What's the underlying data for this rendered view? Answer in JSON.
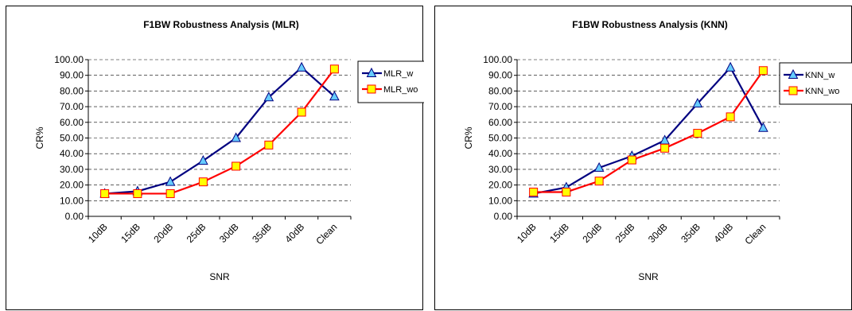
{
  "chart_data": [
    {
      "type": "line",
      "title": "F1BW Robustness Analysis (MLR)",
      "xlabel": "SNR",
      "ylabel": "CR%",
      "ylim": [
        0,
        100
      ],
      "yticks": [
        "0.00",
        "10.00",
        "20.00",
        "30.00",
        "40.00",
        "50.00",
        "60.00",
        "70.00",
        "80.00",
        "90.00",
        "100.00"
      ],
      "categories": [
        "10dB",
        "15dB",
        "20dB",
        "25dB",
        "30dB",
        "35dB",
        "40dB",
        "Clean"
      ],
      "grid": "horizontal dashed",
      "legend_position": "right",
      "series": [
        {
          "name": "MLR_w",
          "values": [
            14.5,
            16,
            22,
            35.5,
            50,
            76,
            95,
            76.5
          ],
          "color": "#000080",
          "marker": "triangle",
          "marker_fill": "#66ccff"
        },
        {
          "name": "MLR_wo",
          "values": [
            14.5,
            14.5,
            14.5,
            22,
            32,
            45.5,
            66.5,
            94
          ],
          "color": "#ff0000",
          "marker": "square",
          "marker_fill": "#ffff00"
        }
      ]
    },
    {
      "type": "line",
      "title": "F1BW Robustness Analysis (KNN)",
      "xlabel": "SNR",
      "ylabel": "CR%",
      "ylim": [
        0,
        100
      ],
      "yticks": [
        "0.00",
        "10.00",
        "20.00",
        "30.00",
        "40.00",
        "50.00",
        "60.00",
        "70.00",
        "80.00",
        "90.00",
        "100.00"
      ],
      "categories": [
        "10dB",
        "15dB",
        "20dB",
        "25dB",
        "30dB",
        "35dB",
        "40dB",
        "Clean"
      ],
      "grid": "horizontal dashed",
      "legend_position": "right",
      "series": [
        {
          "name": "KNN_w",
          "values": [
            14.5,
            18.5,
            31,
            38.5,
            48.5,
            72,
            95,
            56.5
          ],
          "color": "#000080",
          "marker": "triangle",
          "marker_fill": "#66ccff"
        },
        {
          "name": "KNN_wo",
          "values": [
            15.5,
            15.5,
            22.5,
            36,
            43.5,
            53,
            63.5,
            93
          ],
          "color": "#ff0000",
          "marker": "square",
          "marker_fill": "#ffff00"
        }
      ]
    }
  ]
}
